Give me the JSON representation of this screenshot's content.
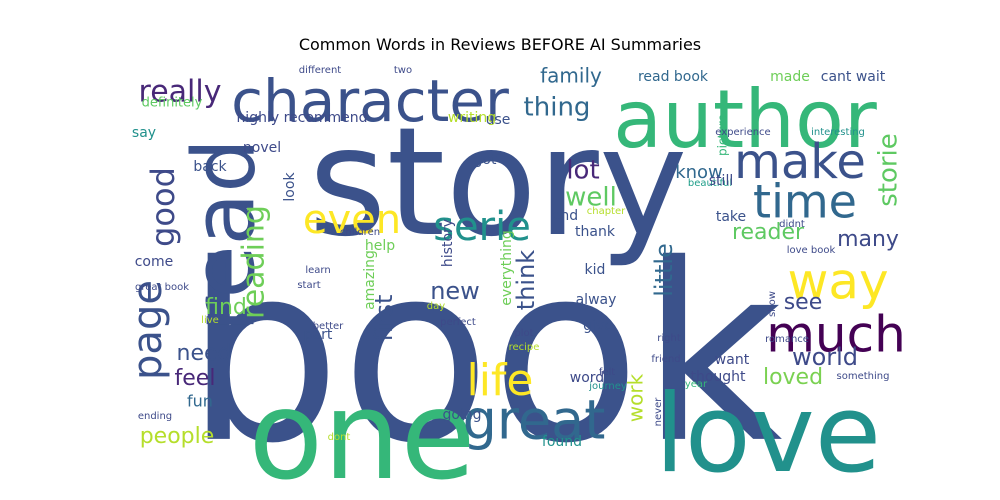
{
  "chart_data": {
    "type": "wordcloud",
    "title": "Common Words in Reviews BEFORE AI Summaries",
    "words": [
      {
        "text": "book",
        "color": "#3b528b"
      },
      {
        "text": "story",
        "color": "#3b528b"
      },
      {
        "text": "one",
        "color": "#35b779"
      },
      {
        "text": "love",
        "color": "#21918c"
      },
      {
        "text": "author",
        "color": "#35b779"
      },
      {
        "text": "read",
        "color": "#3b528b"
      },
      {
        "text": "character",
        "color": "#3b528b"
      },
      {
        "text": "great",
        "color": "#31688e"
      },
      {
        "text": "much",
        "color": "#440154"
      },
      {
        "text": "make",
        "color": "#3b528b"
      },
      {
        "text": "time",
        "color": "#31688e"
      },
      {
        "text": "way",
        "color": "#fde725"
      },
      {
        "text": "life",
        "color": "#fde725"
      },
      {
        "text": "even",
        "color": "#fde725"
      },
      {
        "text": "serie",
        "color": "#21918c"
      },
      {
        "text": "good",
        "color": "#3e4a89"
      },
      {
        "text": "page",
        "color": "#3b528b"
      },
      {
        "text": "reading",
        "color": "#6ece58"
      },
      {
        "text": "really",
        "color": "#482878"
      },
      {
        "text": "lot",
        "color": "#482878"
      },
      {
        "text": "well",
        "color": "#5ec962"
      },
      {
        "text": "storie",
        "color": "#5ec962"
      },
      {
        "text": "thing",
        "color": "#31688e"
      },
      {
        "text": "family",
        "color": "#31688e"
      },
      {
        "text": "new",
        "color": "#3b528b"
      },
      {
        "text": "first",
        "color": "#3b528b"
      },
      {
        "text": "think",
        "color": "#3b528b"
      },
      {
        "text": "little",
        "color": "#31688e"
      },
      {
        "text": "world",
        "color": "#3e4a89"
      },
      {
        "text": "see",
        "color": "#3e4a89"
      },
      {
        "text": "many",
        "color": "#3e4a89"
      },
      {
        "text": "reader",
        "color": "#5ec962"
      },
      {
        "text": "loved",
        "color": "#7ad151"
      },
      {
        "text": "people",
        "color": "#b5de2b"
      },
      {
        "text": "feel",
        "color": "#482878"
      },
      {
        "text": "need",
        "color": "#3b528b"
      },
      {
        "text": "find",
        "color": "#6ece58"
      },
      {
        "text": "work",
        "color": "#b5de2b"
      },
      {
        "text": "know",
        "color": "#31688e"
      },
      {
        "text": "read book",
        "color": "#31688e"
      },
      {
        "text": "made",
        "color": "#6ece58"
      },
      {
        "text": "cant wait",
        "color": "#3b528b"
      },
      {
        "text": "highly recommend",
        "color": "#3e4a89"
      },
      {
        "text": "writing",
        "color": "#b5de2b"
      },
      {
        "text": "use",
        "color": "#3b528b"
      },
      {
        "text": "novel",
        "color": "#3e4a89"
      },
      {
        "text": "back",
        "color": "#3b528b"
      },
      {
        "text": "got",
        "color": "#3b528b"
      },
      {
        "text": "amazing",
        "color": "#6ece58"
      },
      {
        "text": "history",
        "color": "#3e4a89"
      },
      {
        "text": "everything",
        "color": "#6ece58"
      },
      {
        "text": "fun",
        "color": "#31688e"
      },
      {
        "text": "going",
        "color": "#3b528b"
      },
      {
        "text": "found",
        "color": "#21918c"
      },
      {
        "text": "thought",
        "color": "#3e4a89"
      },
      {
        "text": "want",
        "color": "#3e4a89"
      },
      {
        "text": "word",
        "color": "#3e4a89"
      },
      {
        "text": "give",
        "color": "#3b528b"
      },
      {
        "text": "part",
        "color": "#3b528b"
      },
      {
        "text": "help",
        "color": "#6ece58"
      },
      {
        "text": "come",
        "color": "#3e4a89"
      },
      {
        "text": "look",
        "color": "#3b528b"
      },
      {
        "text": "say",
        "color": "#21918c"
      },
      {
        "text": "definitely",
        "color": "#5ec962"
      },
      {
        "text": "different",
        "color": "#3e4a89"
      },
      {
        "text": "two",
        "color": "#3e4a89"
      },
      {
        "text": "picture",
        "color": "#35b779"
      },
      {
        "text": "experience",
        "color": "#3e4a89"
      },
      {
        "text": "interesting",
        "color": "#21918c"
      },
      {
        "text": "beautiful",
        "color": "#1f9e89"
      },
      {
        "text": "still",
        "color": "#3e4a89"
      },
      {
        "text": "end",
        "color": "#3b528b"
      },
      {
        "text": "chapter",
        "color": "#b5de2b"
      },
      {
        "text": "thank",
        "color": "#3b528b"
      },
      {
        "text": "take",
        "color": "#3b528b"
      },
      {
        "text": "didnt",
        "color": "#3e4a89"
      },
      {
        "text": "love book",
        "color": "#3e4a89"
      },
      {
        "text": "children",
        "color": "#3e4a89"
      },
      {
        "text": "kid",
        "color": "#3b528b"
      },
      {
        "text": "alway",
        "color": "#3b528b"
      },
      {
        "text": "learn",
        "color": "#3e4a89"
      },
      {
        "text": "start",
        "color": "#3e4a89"
      },
      {
        "text": "better",
        "color": "#3e4a89"
      },
      {
        "text": "great book",
        "color": "#3e4a89"
      },
      {
        "text": "live",
        "color": "#b5de2b"
      },
      {
        "text": "day",
        "color": "#b5de2b"
      },
      {
        "text": "perfect",
        "color": "#3e4a89"
      },
      {
        "text": "plot",
        "color": "#3e4a89"
      },
      {
        "text": "recipe",
        "color": "#b5de2b"
      },
      {
        "text": "felt",
        "color": "#3e4a89"
      },
      {
        "text": "journey",
        "color": "#21918c"
      },
      {
        "text": "friend",
        "color": "#3e4a89"
      },
      {
        "text": "right",
        "color": "#3e4a89"
      },
      {
        "text": "show",
        "color": "#3e4a89"
      },
      {
        "text": "romance",
        "color": "#3e4a89"
      },
      {
        "text": "something",
        "color": "#3e4a89"
      },
      {
        "text": "year",
        "color": "#35b779"
      },
      {
        "text": "never",
        "color": "#3e4a89"
      },
      {
        "text": "ending",
        "color": "#3e4a89"
      },
      {
        "text": "dont",
        "color": "#b5de2b"
      }
    ]
  }
}
